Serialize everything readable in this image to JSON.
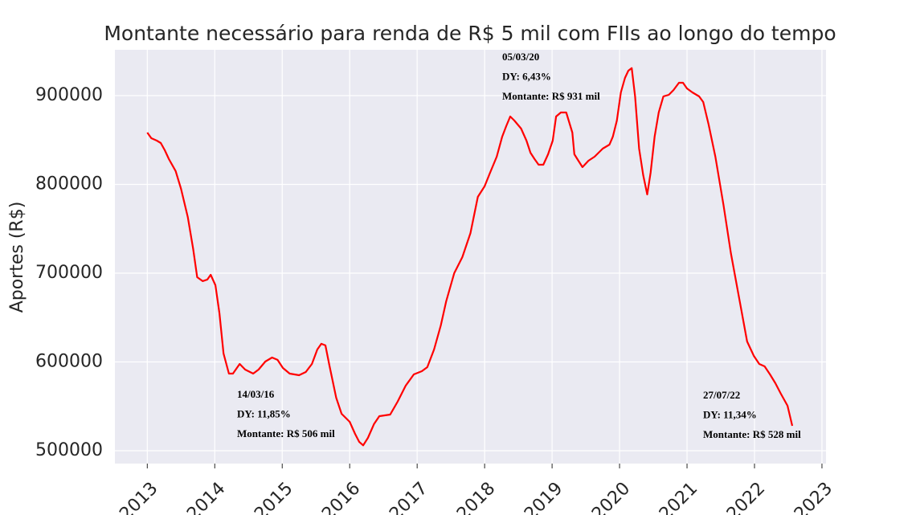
{
  "chart_data": {
    "type": "line",
    "title": "Montante necessário para renda de R$ 5 mil com FIIs ao longo do tempo",
    "y_label": "Aportes (R$)",
    "color": "#ff0000",
    "grid": true,
    "xlim": [
      2012.52,
      2023.06
    ],
    "ylim": [
      485500,
      951600
    ],
    "xticks": [
      2013,
      2014,
      2015,
      2016,
      2017,
      2018,
      2019,
      2020,
      2021,
      2022,
      2023
    ],
    "yticks": [
      500000,
      600000,
      700000,
      800000,
      900000
    ],
    "x": [
      2013.0,
      2013.06,
      2013.14,
      2013.2,
      2013.26,
      2013.32,
      2013.42,
      2013.5,
      2013.6,
      2013.68,
      2013.74,
      2013.82,
      2013.89,
      2013.94,
      2014.01,
      2014.07,
      2014.13,
      2014.21,
      2014.27,
      2014.37,
      2014.45,
      2014.57,
      2014.65,
      2014.75,
      2014.85,
      2014.93,
      2015.01,
      2015.11,
      2015.25,
      2015.35,
      2015.44,
      2015.52,
      2015.58,
      2015.64,
      2015.7,
      2015.8,
      2015.88,
      2016.0,
      2016.08,
      2016.14,
      2016.2,
      2016.27,
      2016.36,
      2016.44,
      2016.6,
      2016.71,
      2016.83,
      2016.95,
      2017.07,
      2017.15,
      2017.25,
      2017.35,
      2017.43,
      2017.55,
      2017.67,
      2017.79,
      2017.9,
      2018.0,
      2018.08,
      2018.18,
      2018.26,
      2018.32,
      2018.38,
      2018.44,
      2018.54,
      2018.62,
      2018.68,
      2018.74,
      2018.8,
      2018.87,
      2018.94,
      2019.01,
      2019.06,
      2019.13,
      2019.21,
      2019.3,
      2019.33,
      2019.39,
      2019.45,
      2019.54,
      2019.63,
      2019.75,
      2019.85,
      2019.9,
      2019.96,
      2020.02,
      2020.08,
      2020.13,
      2020.18,
      2020.23,
      2020.29,
      2020.35,
      2020.41,
      2020.46,
      2020.52,
      2020.58,
      2020.65,
      2020.73,
      2020.8,
      2020.88,
      2020.94,
      2021.0,
      2021.08,
      2021.18,
      2021.24,
      2021.32,
      2021.42,
      2021.54,
      2021.65,
      2021.77,
      2021.89,
      2021.99,
      2022.07,
      2022.15,
      2022.23,
      2022.31,
      2022.39,
      2022.49,
      2022.56
    ],
    "values": [
      858400,
      852000,
      849300,
      846600,
      838500,
      828500,
      815000,
      795000,
      763300,
      727300,
      695500,
      691000,
      692800,
      698200,
      686400,
      654800,
      609500,
      586900,
      586900,
      597700,
      591400,
      586900,
      591400,
      600400,
      605000,
      602300,
      593200,
      586900,
      585100,
      588700,
      597700,
      614000,
      620400,
      618600,
      595900,
      559700,
      541600,
      532600,
      519000,
      510000,
      506000,
      514500,
      529900,
      538900,
      540700,
      555200,
      573300,
      586000,
      589600,
      594100,
      614000,
      641200,
      668300,
      700000,
      718100,
      745200,
      786000,
      797800,
      813100,
      831200,
      853800,
      865600,
      876500,
      872000,
      862900,
      849300,
      835700,
      828500,
      822200,
      822200,
      833900,
      849300,
      876500,
      881000,
      881000,
      858400,
      833900,
      826700,
      819500,
      826700,
      831200,
      840300,
      844800,
      853800,
      871900,
      903600,
      919900,
      928100,
      931000,
      899100,
      840300,
      810400,
      788700,
      813100,
      853800,
      881000,
      899100,
      900900,
      906300,
      914500,
      914500,
      908100,
      903600,
      899100,
      892800,
      867400,
      831200,
      776900,
      722600,
      672900,
      623100,
      606800,
      597700,
      595000,
      586000,
      576000,
      564300,
      550700,
      528000
    ],
    "annotations": [
      [
        "14/03/16",
        "DY: 11,85%",
        "Montante: R$ 506 mil"
      ],
      [
        "05/03/20",
        "DY: 6,43%",
        "Montante: R$ 931 mil"
      ],
      [
        "27/07/22",
        "DY: 11,34%",
        "Montante: R$ 528 mil"
      ]
    ]
  }
}
